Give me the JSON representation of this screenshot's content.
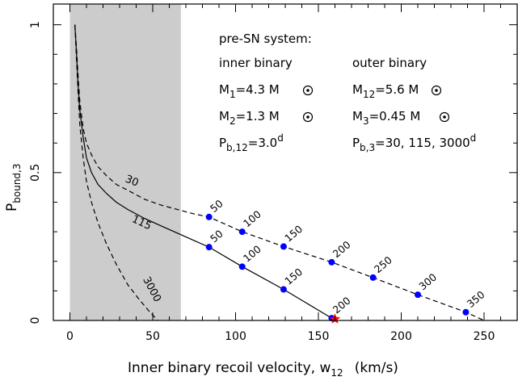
{
  "chart_data": {
    "type": "line",
    "xlabel": {
      "main": "Inner binary recoil velocity, w",
      "sub": "12",
      "unit": "(km/s)"
    },
    "ylabel": {
      "main": "P",
      "sub": "bound,3"
    },
    "xlim": [
      -10,
      270
    ],
    "ylim": [
      0,
      1.07
    ],
    "x_ticks": [
      0,
      50,
      100,
      150,
      200,
      250
    ],
    "y_ticks": [
      0,
      0.5,
      1
    ],
    "y_tick_labels": [
      "0",
      "0.5",
      "1"
    ],
    "grid": false,
    "shaded_region": {
      "x": [
        0,
        67
      ],
      "color": "#cccccc"
    },
    "series": [
      {
        "name": "30",
        "style": "dashed",
        "x": [
          3,
          4,
          5,
          6,
          8,
          10,
          13,
          17,
          22,
          28,
          35,
          45,
          55,
          65,
          75,
          84,
          104,
          129,
          158,
          183,
          210,
          239,
          250
        ],
        "values": [
          1.0,
          0.92,
          0.82,
          0.74,
          0.65,
          0.6,
          0.56,
          0.52,
          0.49,
          0.46,
          0.44,
          0.41,
          0.39,
          0.375,
          0.36,
          0.35,
          0.3,
          0.25,
          0.197,
          0.145,
          0.087,
          0.028,
          0.0
        ]
      },
      {
        "name": "115",
        "style": "solid",
        "x": [
          3,
          4,
          5,
          6,
          8,
          10,
          13,
          17,
          22,
          28,
          35,
          45,
          55,
          65,
          75,
          84,
          104,
          129,
          158
        ],
        "values": [
          1.0,
          0.9,
          0.79,
          0.71,
          0.62,
          0.55,
          0.5,
          0.46,
          0.43,
          0.4,
          0.375,
          0.345,
          0.32,
          0.295,
          0.27,
          0.248,
          0.182,
          0.105,
          0.008
        ]
      },
      {
        "name": "3000",
        "style": "dashed",
        "x": [
          3,
          4,
          5,
          6,
          8,
          10,
          13,
          17,
          22,
          28,
          35,
          42,
          48,
          53
        ],
        "values": [
          1.0,
          0.88,
          0.76,
          0.66,
          0.55,
          0.47,
          0.4,
          0.33,
          0.26,
          0.19,
          0.12,
          0.07,
          0.03,
          0.0
        ]
      }
    ],
    "marked_points": [
      {
        "curve": "30",
        "label": "50",
        "x": 84,
        "y": 0.35
      },
      {
        "curve": "30",
        "label": "100",
        "x": 104,
        "y": 0.3
      },
      {
        "curve": "30",
        "label": "150",
        "x": 129,
        "y": 0.25
      },
      {
        "curve": "30",
        "label": "200",
        "x": 158,
        "y": 0.197
      },
      {
        "curve": "30",
        "label": "250",
        "x": 183,
        "y": 0.145
      },
      {
        "curve": "30",
        "label": "300",
        "x": 210,
        "y": 0.087
      },
      {
        "curve": "30",
        "label": "350",
        "x": 239,
        "y": 0.028
      },
      {
        "curve": "115",
        "label": "50",
        "x": 84,
        "y": 0.248
      },
      {
        "curve": "115",
        "label": "100",
        "x": 104,
        "y": 0.182
      },
      {
        "curve": "115",
        "label": "150",
        "x": 129,
        "y": 0.105
      },
      {
        "curve": "115",
        "label": "200",
        "x": 158,
        "y": 0.008
      }
    ],
    "curve_labels": [
      {
        "text": "30",
        "x": 33,
        "y": 0.47
      },
      {
        "text": "115",
        "x": 37,
        "y": 0.335
      },
      {
        "text": "3000",
        "x": 44,
        "y": 0.14
      }
    ],
    "star": {
      "x": 160,
      "y": 0.005,
      "color": "#ff0000"
    },
    "point_color": "#0000ff",
    "annotation": {
      "header": "pre-SN system:",
      "left": {
        "title": "inner binary",
        "m1": {
          "main": "M",
          "sub": "1",
          "rest": "=4.3 M"
        },
        "m2": {
          "main": "M",
          "sub": "2",
          "rest": "=1.3 M"
        },
        "pb": {
          "main": "P",
          "sub": "b,12",
          "rest": "=3.0",
          "sup": "d"
        }
      },
      "right": {
        "title": "outer binary",
        "m12": {
          "main": "M",
          "sub": "12",
          "rest": "=5.6 M"
        },
        "m3": {
          "main": "M",
          "sub": "3",
          "rest": "=0.45 M"
        },
        "pb3": {
          "main": "P",
          "sub": "b,3",
          "rest": "=30, 115, 3000",
          "sup": "d"
        }
      }
    }
  }
}
